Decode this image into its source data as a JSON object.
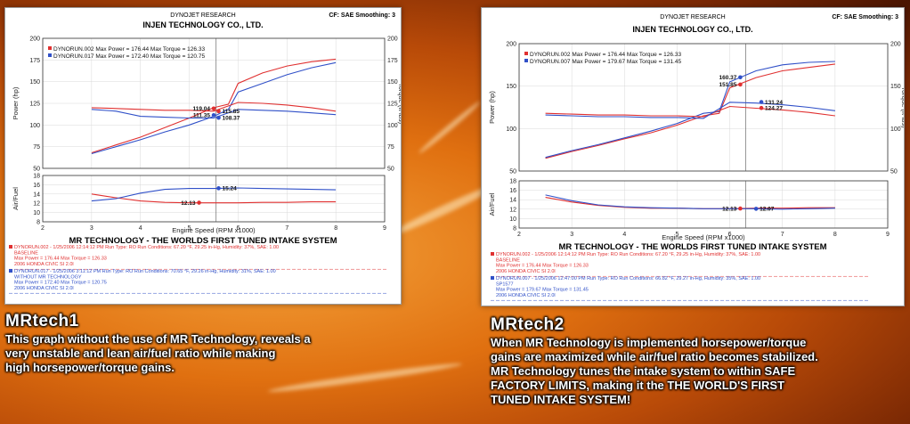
{
  "charts": [
    {
      "company": "DYNOJET RESEARCH",
      "title": "INJEN TECHNOLOGY CO., LTD.",
      "cf": "CF: SAE  Smoothing: 3",
      "caption": "MR TECHNOLOGY - THE WORLDS FIRST TUNED INTAKE SYSTEM",
      "legend": [
        {
          "run": "DYNORUN.002",
          "text": "DYNORUN.002 Max Power = 176.44   Max Torque = 126.33",
          "color": "#e03030"
        },
        {
          "run": "DYNORUN.017",
          "text": "DYNORUN.017 Max Power = 172.40   Max Torque = 120.75",
          "color": "#3050c8"
        }
      ],
      "run_info": [
        {
          "color": "#e03030",
          "lines": [
            "DYNORUN.002 - 1/25/2006 12:14:12 PM  Run Type: RO  Run Conditions: 67.20 °F, 29.25 in-Hg,  Humidity: 37%, SAE: 1.00",
            "BASELINE",
            "Max Power = 176.44   Max Torque = 126.33",
            "2006 HONDA CIVIC SI 2.0l"
          ]
        },
        {
          "color": "#3050c8",
          "lines": [
            "DYNORUN.017 - 1/25/2006 3:11:12 PM  Run Type: RO  Run Conditions: 70.65 °F, 29.26 in-Hg,  Humidity: 31%, SAE: 1.00",
            "WITHOUT MR TECHNOLOGY",
            "Max Power = 172.40   Max Torque = 120.75",
            "2006 HONDA CIVIC SI 2.0l"
          ]
        }
      ],
      "annotations": {
        "p_red": "119.04",
        "p_blue": "111.35",
        "t_red": "115.85",
        "t_blue": "108.37",
        "af_blue": "15.24",
        "af_red": "12.13"
      }
    },
    {
      "company": "DYNOJET RESEARCH",
      "title": "INJEN TECHNOLOGY CO., LTD.",
      "cf": "CF: SAE  Smoothing: 3",
      "caption": "MR TECHNOLOGY - THE WORLDS FIRST TUNED INTAKE SYSTEM",
      "legend": [
        {
          "run": "DYNORUN.002",
          "text": "DYNORUN.002 Max Power = 176.44   Max Torque = 126.33",
          "color": "#e03030"
        },
        {
          "run": "DYNORUN.007",
          "text": "DYNORUN.007 Max Power = 179.67   Max Torque = 131.45",
          "color": "#3050c8"
        }
      ],
      "run_info": [
        {
          "color": "#e03030",
          "lines": [
            "DYNORUN.002 - 1/25/2006 12:14:12 PM  Run Type: RO  Run Conditions: 67.20 °F, 29.25 in-Hg,  Humidity: 37%, SAE: 1.00",
            "BASELINE",
            "Max Power = 176.44   Max Torque = 126.33",
            "2006 HONDA CIVIC SI 2.0l"
          ]
        },
        {
          "color": "#3050c8",
          "lines": [
            "DYNORUN.007 - 1/25/2006 12:47:00 PM  Run Type: RO  Run Conditions: 66.82 °F, 29.27 in-Hg,  Humidity: 35%, SAE: 1.00",
            "SP1577",
            "Max Power = 179.67   Max Torque = 131.45",
            "2006 HONDA CIVIC SI 2.0l"
          ]
        }
      ],
      "annotations": {
        "p_blue": "160.37",
        "p_red": "151.85",
        "t_blue": "131.24",
        "t_red": "124.27",
        "af_red": "12.13",
        "af_blue": "12.07"
      }
    }
  ],
  "chart_data": [
    {
      "type": "line",
      "xlabel": "Engine Speed (RPM x1000)",
      "xlim": [
        2,
        9
      ],
      "xticks": [
        "2",
        "3",
        "4",
        "5",
        "6",
        "7",
        "8",
        "9"
      ],
      "upper": {
        "ylabel_left": "Power (hp)",
        "ylabel_right": "Torque (ft-lbs)",
        "ylim": [
          50,
          200
        ],
        "yticks": [
          "50",
          "75",
          "100",
          "125",
          "150",
          "175",
          "200"
        ],
        "series": [
          {
            "name": "DYNORUN.002",
            "kind": "power",
            "color": "#e03030",
            "x": [
              3.0,
              3.5,
              4.0,
              4.5,
              5.0,
              5.5,
              5.8,
              6.0,
              6.5,
              7.0,
              7.5,
              8.0
            ],
            "y": [
              68,
              77,
              86,
              97,
              108,
              120,
              124,
              148,
              160,
              168,
              173,
              176
            ]
          },
          {
            "name": "DYNORUN.017",
            "kind": "power",
            "color": "#3050c8",
            "x": [
              3.0,
              3.5,
              4.0,
              4.5,
              5.0,
              5.5,
              5.8,
              6.0,
              6.5,
              7.0,
              7.5,
              8.0
            ],
            "y": [
              67,
              75,
              83,
              92,
              100,
              110,
              118,
              138,
              148,
              158,
              166,
              172
            ]
          },
          {
            "name": "DYNORUN.002",
            "kind": "torque",
            "color": "#e03030",
            "x": [
              3.0,
              3.5,
              4.0,
              4.5,
              5.0,
              5.5,
              6.0,
              6.5,
              7.0,
              7.5,
              8.0
            ],
            "y": [
              120,
              119,
              118,
              117,
              117,
              116,
              126,
              125,
              123,
              120,
              116
            ]
          },
          {
            "name": "DYNORUN.017",
            "kind": "torque",
            "color": "#3050c8",
            "x": [
              3.0,
              3.5,
              4.0,
              4.5,
              5.0,
              5.5,
              6.0,
              6.5,
              7.0,
              7.5,
              8.0
            ],
            "y": [
              118,
              116,
              110,
              109,
              108,
              108,
              118,
              117,
              116,
              114,
              112
            ]
          }
        ]
      },
      "lower": {
        "ylabel": "Air/Fuel",
        "ylim": [
          8,
          18
        ],
        "yticks": [
          "8",
          "10",
          "12",
          "14",
          "16",
          "18"
        ],
        "series": [
          {
            "name": "DYNORUN.002",
            "color": "#e03030",
            "x": [
              3.0,
              3.5,
              4.0,
              4.5,
              5.0,
              5.5,
              6.0,
              6.5,
              7.0,
              7.5,
              8.0
            ],
            "y": [
              14.0,
              13.2,
              12.5,
              12.2,
              12.1,
              12.1,
              12.1,
              12.2,
              12.2,
              12.3,
              12.3
            ]
          },
          {
            "name": "DYNORUN.017",
            "color": "#3050c8",
            "x": [
              3.0,
              3.5,
              4.0,
              4.5,
              5.0,
              5.5,
              6.0,
              6.5,
              7.0,
              7.5,
              8.0
            ],
            "y": [
              12.5,
              13.0,
              14.2,
              15.0,
              15.2,
              15.2,
              15.3,
              15.2,
              15.1,
              15.0,
              14.9
            ]
          }
        ]
      }
    },
    {
      "type": "line",
      "xlabel": "Engine Speed (RPM x1000)",
      "xlim": [
        2,
        9
      ],
      "xticks": [
        "2",
        "3",
        "4",
        "5",
        "6",
        "7",
        "8",
        "9"
      ],
      "upper": {
        "ylabel_left": "Power (hp)",
        "ylabel_right": "Torque (ft-lbs)",
        "ylim": [
          50,
          200
        ],
        "yticks": [
          "50",
          "100",
          "150",
          "200"
        ],
        "series": [
          {
            "name": "DYNORUN.002",
            "kind": "power",
            "color": "#e03030",
            "x": [
              2.5,
              3.0,
              3.5,
              4.0,
              4.5,
              5.0,
              5.5,
              5.8,
              6.0,
              6.5,
              7.0,
              7.5,
              8.0
            ],
            "y": [
              65,
              73,
              80,
              88,
              95,
              104,
              115,
              118,
              148,
              160,
              168,
              172,
              176
            ]
          },
          {
            "name": "DYNORUN.007",
            "kind": "power",
            "color": "#3050c8",
            "x": [
              2.5,
              3.0,
              3.5,
              4.0,
              4.5,
              5.0,
              5.5,
              5.8,
              6.0,
              6.5,
              7.0,
              7.5,
              8.0
            ],
            "y": [
              66,
              74,
              81,
              89,
              97,
              106,
              118,
              120,
              155,
              168,
              175,
              178,
              179
            ]
          },
          {
            "name": "DYNORUN.002",
            "kind": "torque",
            "color": "#e03030",
            "x": [
              2.5,
              3.0,
              3.5,
              4.0,
              4.5,
              5.0,
              5.5,
              6.0,
              6.5,
              7.0,
              7.5,
              8.0
            ],
            "y": [
              118,
              117,
              116,
              116,
              115,
              115,
              114,
              126,
              124,
              122,
              119,
              115
            ]
          },
          {
            "name": "DYNORUN.007",
            "kind": "torque",
            "color": "#3050c8",
            "x": [
              2.5,
              3.0,
              3.5,
              4.0,
              4.5,
              5.0,
              5.5,
              6.0,
              6.5,
              7.0,
              7.5,
              8.0
            ],
            "y": [
              116,
              115,
              114,
              114,
              113,
              113,
              112,
              131,
              130,
              128,
              125,
              121
            ]
          }
        ]
      },
      "lower": {
        "ylabel": "Air/Fuel",
        "ylim": [
          8,
          18
        ],
        "yticks": [
          "8",
          "10",
          "12",
          "14",
          "16",
          "18"
        ],
        "series": [
          {
            "name": "DYNORUN.002",
            "color": "#e03030",
            "x": [
              2.5,
              3.0,
              3.5,
              4.0,
              4.5,
              5.0,
              5.5,
              6.0,
              6.5,
              7.0,
              7.5,
              8.0
            ],
            "y": [
              14.5,
              13.5,
              12.8,
              12.4,
              12.2,
              12.2,
              12.1,
              12.1,
              12.2,
              12.2,
              12.3,
              12.3
            ]
          },
          {
            "name": "DYNORUN.007",
            "color": "#3050c8",
            "x": [
              2.5,
              3.0,
              3.5,
              4.0,
              4.5,
              5.0,
              5.5,
              6.0,
              6.5,
              7.0,
              7.5,
              8.0
            ],
            "y": [
              15.0,
              13.8,
              12.9,
              12.5,
              12.3,
              12.2,
              12.1,
              12.1,
              12.1,
              12.0,
              12.1,
              12.2
            ]
          }
        ]
      }
    }
  ],
  "descriptions": [
    {
      "heading": "MRtech1",
      "lines": [
        "This graph without the use of MR Technology, reveals a",
        "very unstable and lean air/fuel ratio while making",
        "high horsepower/torque gains."
      ]
    },
    {
      "heading": "MRtech2",
      "lines": [
        "When MR Technology is implemented horsepower/torque",
        "gains are  maximized while air/fuel ratio becomes stabilized.",
        "MR Technology tunes the intake system to within SAFE",
        "FACTORY LIMITS, making it the THE WORLD'S FIRST",
        "TUNED INTAKE SYSTEM!"
      ]
    }
  ]
}
